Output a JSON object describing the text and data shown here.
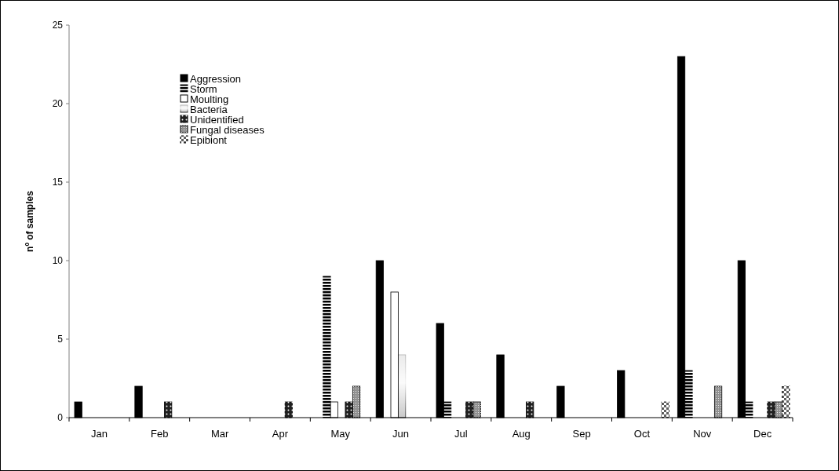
{
  "chart_data": {
    "type": "bar",
    "ylabel": "nº of samples",
    "categories": [
      "Jan",
      "Feb",
      "Mar",
      "Apr",
      "May",
      "Jun",
      "Jul",
      "Aug",
      "Sep",
      "Oct",
      "Nov",
      "Dec"
    ],
    "series": [
      {
        "name": "Aggression",
        "color": "#000000",
        "values": [
          1,
          2,
          0,
          0,
          0,
          10,
          6,
          4,
          2,
          3,
          23,
          10
        ]
      },
      {
        "name": "Storm",
        "color": "#000000",
        "values": [
          0,
          0,
          0,
          0,
          9,
          0,
          1,
          0,
          0,
          0,
          3,
          1
        ]
      },
      {
        "name": "Moulting",
        "color": "#ffffff",
        "values": [
          0,
          0,
          0,
          0,
          1,
          8,
          0,
          0,
          0,
          0,
          0,
          0
        ]
      },
      {
        "name": "Bacteria",
        "color": "#c0c0c0",
        "values": [
          0,
          0,
          0,
          0,
          0,
          4,
          0,
          0,
          0,
          0,
          0,
          0
        ]
      },
      {
        "name": "Unidentified",
        "color": "#202020",
        "values": [
          0,
          1,
          0,
          1,
          1,
          0,
          1,
          1,
          0,
          0,
          0,
          1
        ]
      },
      {
        "name": "Fungal diseases",
        "color": "#909090",
        "values": [
          0,
          0,
          0,
          0,
          2,
          0,
          1,
          0,
          0,
          0,
          2,
          1
        ]
      },
      {
        "name": "Epibiont",
        "color": "#606060",
        "values": [
          0,
          0,
          0,
          0,
          0,
          0,
          0,
          0,
          0,
          1,
          0,
          2
        ]
      }
    ],
    "ylim": [
      0,
      25
    ],
    "yticks": [
      0,
      5,
      10,
      15,
      20,
      25
    ],
    "legend": "top left"
  }
}
